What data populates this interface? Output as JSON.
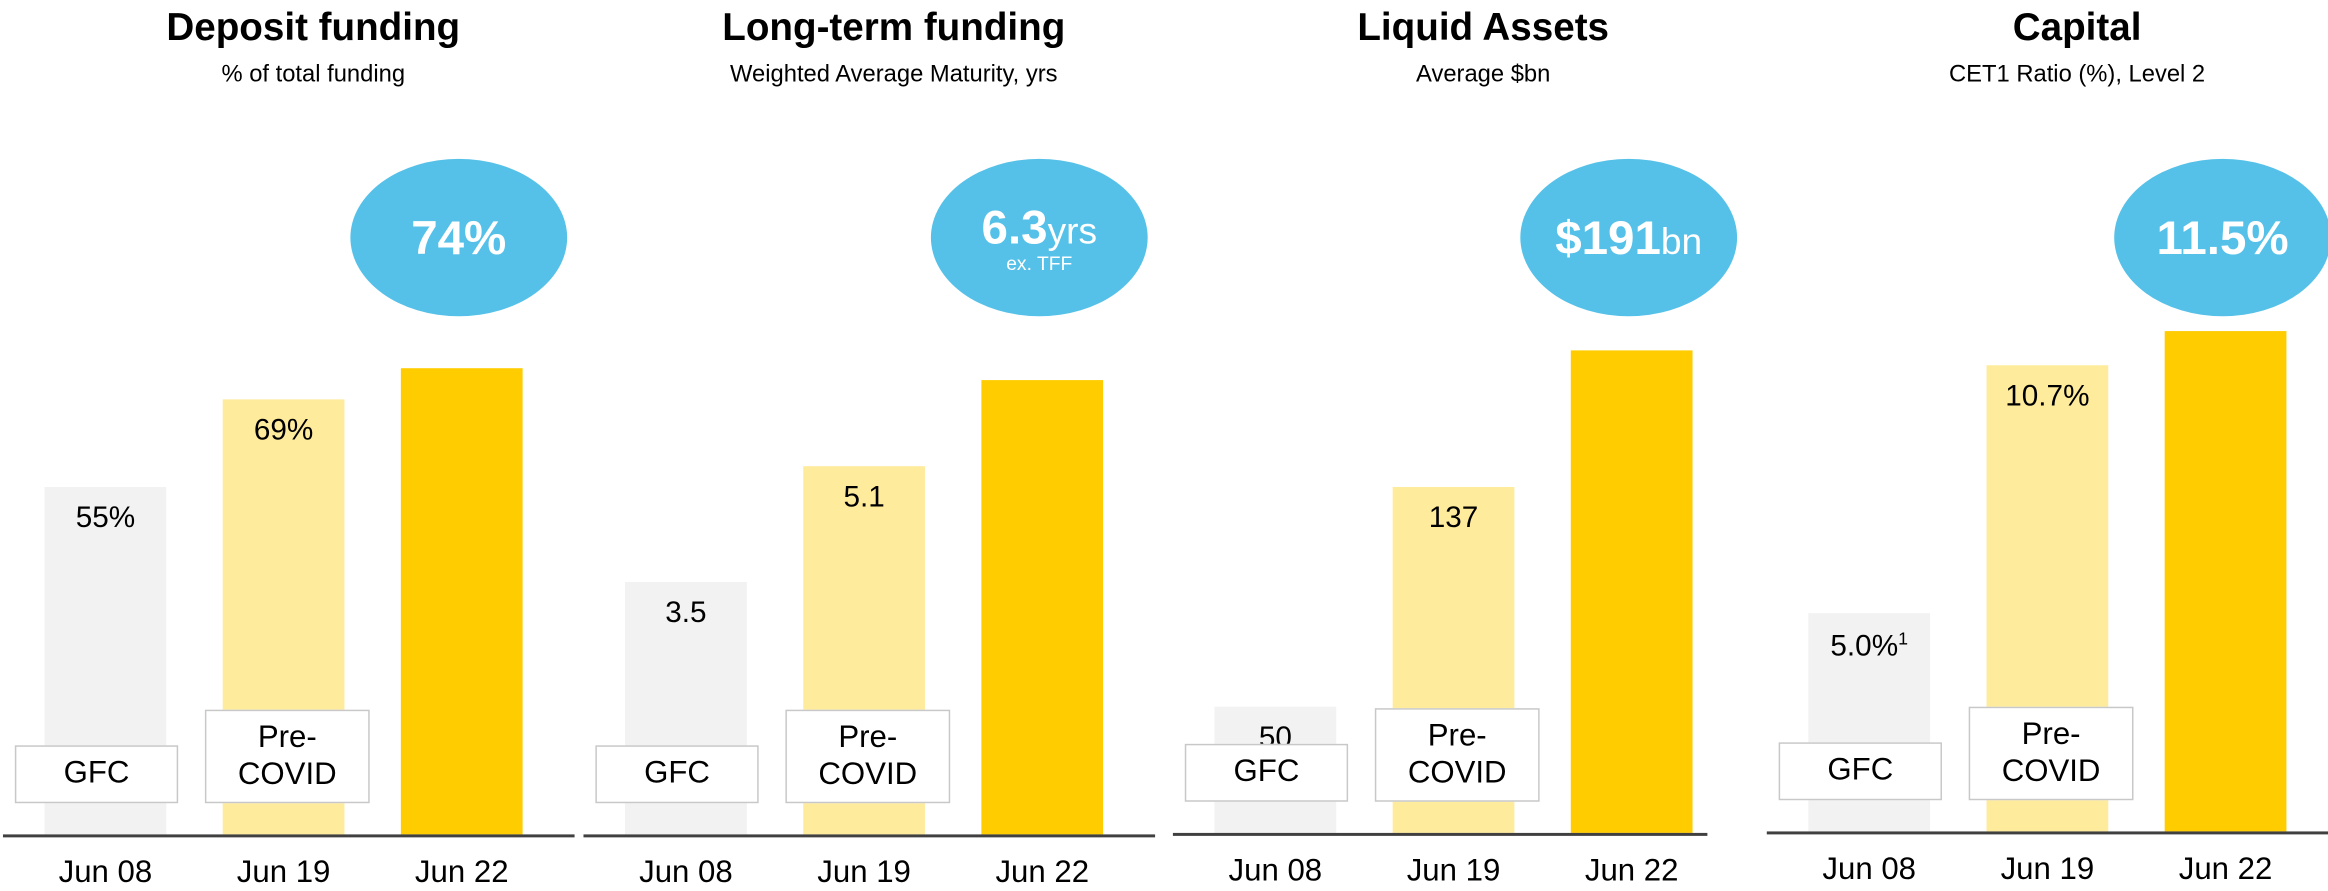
{
  "chart_data": [
    {
      "type": "bar",
      "title": "Deposit funding",
      "subtitle": "% of total funding",
      "categories": [
        "Jun 08",
        "Jun 19",
        "Jun 22"
      ],
      "values": [
        55,
        69,
        74
      ],
      "value_labels": [
        "55%",
        "69%",
        "74%"
      ],
      "period_labels": [
        "GFC",
        "Pre-COVID",
        null
      ],
      "colors": [
        "#f2f2f2",
        "#ffeb9c",
        "#ffcc00"
      ],
      "highlight_color": "#56c1e8",
      "ylim": [
        0,
        80
      ]
    },
    {
      "type": "bar",
      "title": "Long-term funding",
      "subtitle": "Weighted Average Maturity, yrs",
      "categories": [
        "Jun 08",
        "Jun 19",
        "Jun 22"
      ],
      "values": [
        3.5,
        5.1,
        6.3
      ],
      "value_labels": [
        "3.5",
        "5.1",
        "6.3"
      ],
      "highlight_unit": "yrs",
      "highlight_note": "ex. TFF",
      "period_labels": [
        "GFC",
        "Pre-COVID",
        null
      ],
      "colors": [
        "#f2f2f2",
        "#ffeb9c",
        "#ffcc00"
      ],
      "highlight_color": "#56c1e8",
      "ylim": [
        0,
        7
      ]
    },
    {
      "type": "bar",
      "title": "Liquid Assets",
      "subtitle": "Average $bn",
      "categories": [
        "Jun 08",
        "Jun 19",
        "Jun 22"
      ],
      "values": [
        50,
        137,
        191
      ],
      "value_labels": [
        "50",
        "137",
        "$191"
      ],
      "highlight_unit": "bn",
      "period_labels": [
        "GFC",
        "Pre-COVID",
        null
      ],
      "colors": [
        "#f2f2f2",
        "#ffeb9c",
        "#ffcc00"
      ],
      "highlight_color": "#56c1e8",
      "ylim": [
        0,
        200
      ]
    },
    {
      "type": "bar",
      "title": "Capital",
      "subtitle": "CET1 Ratio (%), Level 2",
      "categories": [
        "Jun 08",
        "Jun 19",
        "Jun 22"
      ],
      "values": [
        5.0,
        10.7,
        11.5
      ],
      "value_labels": [
        "5.0%",
        "10.7%",
        "11.5%"
      ],
      "value_label_notes": [
        "1",
        null,
        null
      ],
      "period_labels": [
        "GFC",
        "Pre-COVID",
        null
      ],
      "colors": [
        "#f2f2f2",
        "#ffeb9c",
        "#ffcc00"
      ],
      "highlight_color": "#56c1e8",
      "ylim": [
        0,
        11.6
      ]
    }
  ]
}
